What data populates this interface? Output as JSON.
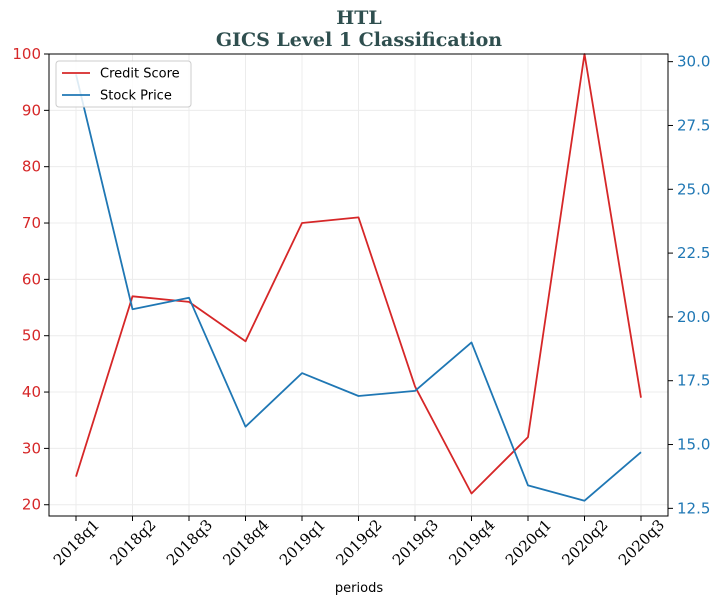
{
  "chart_data": {
    "type": "line",
    "title": "HTL",
    "subtitle": "GICS Level 1 Classification",
    "xlabel": "periods",
    "categories": [
      "2018q1",
      "2018q2",
      "2018q3",
      "2018q4",
      "2019q1",
      "2019q2",
      "2019q3",
      "2019q4",
      "2020q1",
      "2020q2",
      "2020q3"
    ],
    "left_axis": {
      "ylim": [
        18,
        100
      ],
      "ticks": [
        "20",
        "30",
        "40",
        "50",
        "60",
        "70",
        "80",
        "90",
        "100"
      ],
      "color": "#d62728"
    },
    "right_axis": {
      "ylim": [
        12.2,
        30.3
      ],
      "ticks": [
        "12.5",
        "15.0",
        "17.5",
        "20.0",
        "22.5",
        "25.0",
        "27.5",
        "30.0"
      ],
      "color": "#1f77b4"
    },
    "series": [
      {
        "name": "Credit Score",
        "axis": "left",
        "color": "#d62728",
        "values": [
          25,
          57,
          56,
          49,
          70,
          71,
          41,
          22,
          32,
          100,
          39
        ]
      },
      {
        "name": "Stock Price",
        "axis": "right",
        "color": "#1f77b4",
        "values": [
          29.5,
          20.3,
          20.75,
          15.7,
          17.8,
          16.9,
          17.1,
          19.0,
          13.4,
          12.8,
          14.7
        ]
      }
    ],
    "grid": true,
    "legend_position": "top-left"
  }
}
